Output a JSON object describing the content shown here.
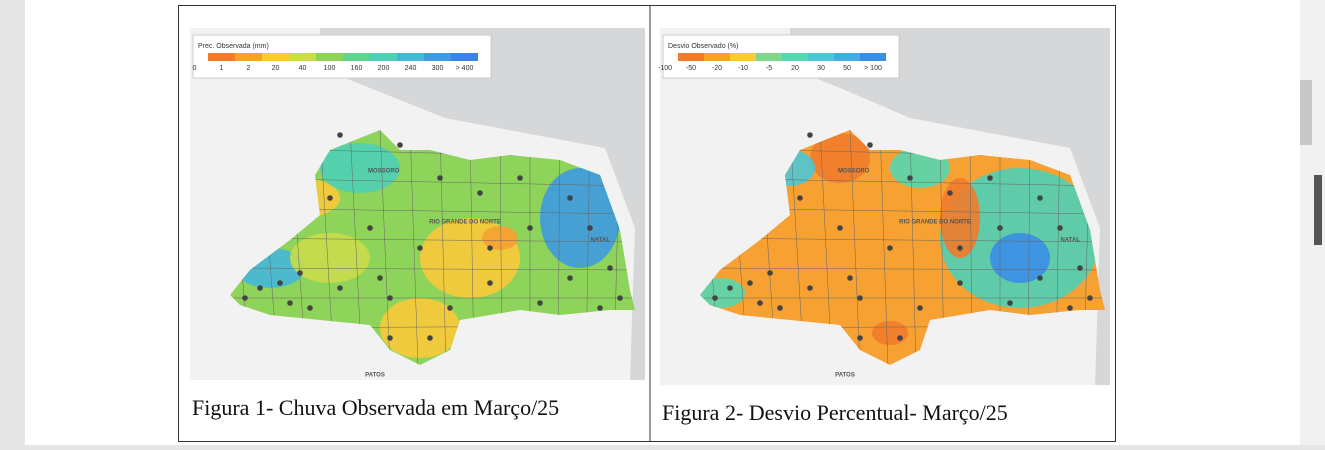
{
  "figures": [
    {
      "legend": {
        "title": "Prec. Observada (mm)",
        "labels": [
          "0",
          "1",
          "2",
          "20",
          "40",
          "100",
          "160",
          "200",
          "240",
          "300",
          "> 400"
        ],
        "colors": [
          "#f27b2b",
          "#f6a132",
          "#fbc93a",
          "#c9dc4a",
          "#8fd45a",
          "#5fd48a",
          "#4fcfb6",
          "#45b7d8",
          "#3f9ae0",
          "#3b82e6"
        ]
      },
      "places": [
        "MOSSORO",
        "RIO GRANDE DO NORTE",
        "NATAL",
        "PATOS"
      ],
      "caption": "Figura 1- Chuva Observada em Março/25"
    },
    {
      "legend": {
        "title": "Desvio Observado (%)",
        "labels": [
          "-100",
          "-50",
          "-20",
          "-10",
          "-5",
          "20",
          "30",
          "50",
          "> 100"
        ],
        "colors": [
          "#f27b2b",
          "#f6a132",
          "#fbc93a",
          "#7fd98a",
          "#57d7b0",
          "#4cc6d4",
          "#42aee0",
          "#3b8ee6"
        ]
      },
      "places": [
        "MOSSORO",
        "RIO GRANDE DO NORTE",
        "NATAL",
        "PATOS"
      ],
      "caption": "Figura 2- Desvio Percentual- Março/25"
    }
  ]
}
